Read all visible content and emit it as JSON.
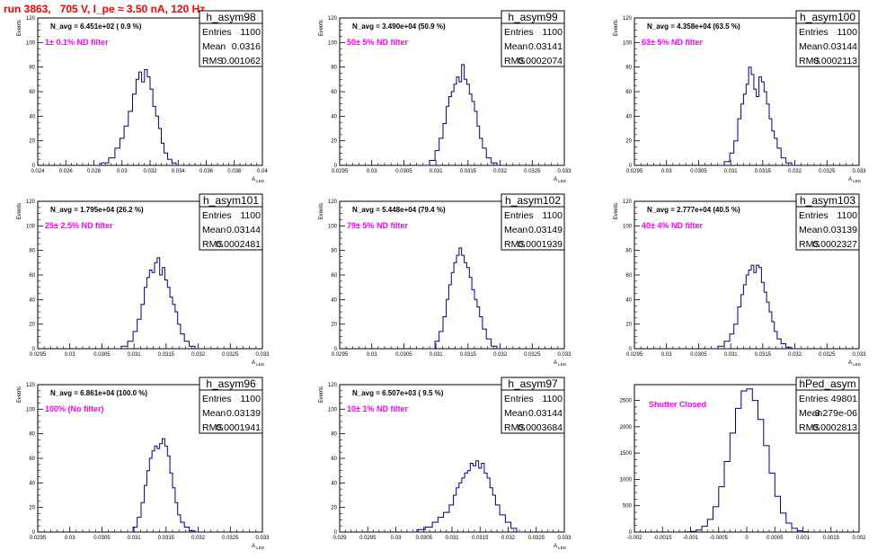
{
  "title": "run 3863,   705 V, I_pe ≈ 3.50 nA, 120 Hz",
  "colors": {
    "title": "#ff0000",
    "histogram": "#000080",
    "annotation": "#ff00ff",
    "text": "#000000"
  },
  "chart_data": [
    {
      "type": "histogram",
      "name": "h_asym98",
      "stats": {
        "Entries": "1100",
        "Mean": "0.0316",
        "RMS": "0.001062"
      },
      "n_avg": "N_avg = 6.451e+02 ( 0.9 %)",
      "filter": "1± 0.1% ND filter",
      "xlabel": "A_LED",
      "ylabel": "Events",
      "xlim": [
        0.024,
        0.04
      ],
      "ylim": [
        0,
        120
      ],
      "xticks": [
        "0.024",
        "0.026",
        "0.028",
        "0.03",
        "0.032",
        "0.034",
        "0.036",
        "0.038",
        "0.04"
      ],
      "yticks": [
        "0",
        "20",
        "40",
        "60",
        "80",
        "100",
        "120"
      ],
      "bins_x": [
        0.0282,
        0.0288,
        0.0293,
        0.0297,
        0.03,
        0.0303,
        0.0306,
        0.0309,
        0.0311,
        0.0313,
        0.0315,
        0.0317,
        0.0319,
        0.0321,
        0.0323,
        0.0325,
        0.0327,
        0.0329,
        0.0331,
        0.0334,
        0.0337,
        0.034
      ],
      "bins_y": [
        0,
        2,
        6,
        14,
        22,
        32,
        44,
        58,
        70,
        76,
        68,
        78,
        72,
        62,
        48,
        40,
        30,
        18,
        10,
        5,
        2,
        0
      ]
    },
    {
      "type": "histogram",
      "name": "h_asym99",
      "stats": {
        "Entries": "1100",
        "Mean": "0.03141",
        "RMS": "0.0002074"
      },
      "n_avg": "N_avg = 3.490e+04 (50.9 %)",
      "filter": "50± 5% ND filter",
      "xlabel": "A_LED",
      "ylabel": "Events",
      "xlim": [
        0.0295,
        0.033
      ],
      "ylim": [
        0,
        120
      ],
      "xticks": [
        "0.0295",
        "0.03",
        "0.0305",
        "0.031",
        "0.0315",
        "0.032",
        "0.0325",
        "0.033"
      ],
      "yticks": [
        "0",
        "20",
        "40",
        "60",
        "80",
        "100",
        "120"
      ],
      "bins_x": [
        0.03085,
        0.03095,
        0.03102,
        0.03108,
        0.03114,
        0.03118,
        0.03122,
        0.03126,
        0.0313,
        0.03134,
        0.03138,
        0.03142,
        0.03146,
        0.0315,
        0.03154,
        0.03158,
        0.03162,
        0.03166,
        0.0317,
        0.03175,
        0.03182,
        0.0319,
        0.032
      ],
      "bins_y": [
        0,
        4,
        12,
        22,
        34,
        48,
        56,
        60,
        66,
        72,
        68,
        82,
        70,
        66,
        58,
        52,
        44,
        32,
        22,
        14,
        6,
        2,
        0
      ]
    },
    {
      "type": "histogram",
      "name": "h_asym100",
      "stats": {
        "Entries": "1100",
        "Mean": "0.03144",
        "RMS": "0.0002113"
      },
      "n_avg": "N_avg = 4.358e+04 (63.5 %)",
      "filter": "63± 5% ND filter",
      "xlabel": "A_LED",
      "ylabel": "Events",
      "xlim": [
        0.0295,
        0.033
      ],
      "ylim": [
        0,
        120
      ],
      "xticks": [
        "0.0295",
        "0.03",
        "0.0305",
        "0.031",
        "0.0315",
        "0.032",
        "0.0325",
        "0.033"
      ],
      "yticks": [
        "0",
        "20",
        "40",
        "60",
        "80",
        "100",
        "120"
      ],
      "bins_x": [
        0.03085,
        0.03095,
        0.03102,
        0.03108,
        0.03114,
        0.03118,
        0.03122,
        0.03126,
        0.0313,
        0.03134,
        0.03138,
        0.03142,
        0.03146,
        0.0315,
        0.03154,
        0.03158,
        0.03162,
        0.03166,
        0.0317,
        0.03175,
        0.03182,
        0.0319,
        0.032
      ],
      "bins_y": [
        0,
        3,
        10,
        20,
        38,
        50,
        58,
        66,
        80,
        74,
        62,
        56,
        72,
        68,
        60,
        50,
        38,
        28,
        22,
        14,
        6,
        2,
        0
      ]
    },
    {
      "type": "histogram",
      "name": "h_asym101",
      "stats": {
        "Entries": "1100",
        "Mean": "0.03144",
        "RMS": "0.0002481"
      },
      "n_avg": "N_avg = 1.795e+04 (26.2 %)",
      "filter": "25± 2.5% ND filter",
      "xlabel": "A_LED",
      "ylabel": "Events",
      "xlim": [
        0.0295,
        0.033
      ],
      "ylim": [
        0,
        120
      ],
      "xticks": [
        "0.0295",
        "0.03",
        "0.0305",
        "0.031",
        "0.0315",
        "0.032",
        "0.0325",
        "0.033"
      ],
      "yticks": [
        "0",
        "20",
        "40",
        "60",
        "80",
        "100",
        "120"
      ],
      "bins_x": [
        0.03075,
        0.03085,
        0.03095,
        0.03102,
        0.03108,
        0.03114,
        0.03118,
        0.03122,
        0.03126,
        0.0313,
        0.03134,
        0.03138,
        0.03142,
        0.03146,
        0.0315,
        0.03154,
        0.03158,
        0.03162,
        0.03166,
        0.0317,
        0.03175,
        0.03182,
        0.0319,
        0.032
      ],
      "bins_y": [
        0,
        2,
        6,
        14,
        24,
        36,
        50,
        58,
        64,
        62,
        70,
        74,
        60,
        66,
        56,
        50,
        42,
        36,
        30,
        20,
        12,
        6,
        2,
        0
      ]
    },
    {
      "type": "histogram",
      "name": "h_asym102",
      "stats": {
        "Entries": "1100",
        "Mean": "0.03149",
        "RMS": "0.0001939"
      },
      "n_avg": "N_avg = 5.448e+04 (79.4 %)",
      "filter": "79± 5% ND filter",
      "xlabel": "A_LED",
      "ylabel": "Events",
      "xlim": [
        0.0295,
        0.033
      ],
      "ylim": [
        0,
        120
      ],
      "xticks": [
        "0.0295",
        "0.03",
        "0.0305",
        "0.031",
        "0.0315",
        "0.032",
        "0.0325",
        "0.033"
      ],
      "yticks": [
        "0",
        "20",
        "40",
        "60",
        "80",
        "100",
        "120"
      ],
      "bins_x": [
        0.03095,
        0.03102,
        0.03108,
        0.03114,
        0.03118,
        0.03122,
        0.03126,
        0.0313,
        0.03134,
        0.03138,
        0.03142,
        0.03146,
        0.0315,
        0.03154,
        0.03158,
        0.03162,
        0.03166,
        0.0317,
        0.03175,
        0.03182,
        0.0319,
        0.032
      ],
      "bins_y": [
        0,
        6,
        14,
        26,
        40,
        52,
        62,
        70,
        76,
        82,
        76,
        70,
        66,
        58,
        48,
        40,
        34,
        26,
        16,
        8,
        2,
        0
      ]
    },
    {
      "type": "histogram",
      "name": "h_asym103",
      "stats": {
        "Entries": "1100",
        "Mean": "0.03139",
        "RMS": "0.0002327"
      },
      "n_avg": "N_avg = 2.777e+04 (40.5 %)",
      "filter": "40± 4% ND filter",
      "xlabel": "A_LED",
      "ylabel": "Events",
      "xlim": [
        0.0295,
        0.033
      ],
      "ylim": [
        0,
        120
      ],
      "xticks": [
        "0.0295",
        "0.03",
        "0.0305",
        "0.031",
        "0.0315",
        "0.032",
        "0.0325",
        "0.033"
      ],
      "yticks": [
        "0",
        "20",
        "40",
        "60",
        "80",
        "100",
        "120"
      ],
      "bins_x": [
        0.03075,
        0.03085,
        0.03095,
        0.03102,
        0.03108,
        0.03114,
        0.03118,
        0.03122,
        0.03126,
        0.0313,
        0.03134,
        0.03138,
        0.03142,
        0.03146,
        0.0315,
        0.03154,
        0.03158,
        0.03162,
        0.03166,
        0.0317,
        0.03175,
        0.03182,
        0.0319,
        0.032
      ],
      "bins_y": [
        0,
        2,
        6,
        12,
        20,
        34,
        44,
        52,
        60,
        64,
        68,
        62,
        68,
        66,
        54,
        46,
        38,
        30,
        22,
        14,
        8,
        4,
        1,
        0
      ]
    },
    {
      "type": "histogram",
      "name": "h_asym96",
      "stats": {
        "Entries": "1100",
        "Mean": "0.03139",
        "RMS": "0.0001941"
      },
      "n_avg": "N_avg = 6.861e+04 (100.0 %)",
      "filter": "100% (No filter)",
      "xlabel": "A_LED",
      "ylabel": "Events",
      "xlim": [
        0.0295,
        0.033
      ],
      "ylim": [
        0,
        120
      ],
      "xticks": [
        "0.0295",
        "0.03",
        "0.0305",
        "0.031",
        "0.0315",
        "0.032",
        "0.0325",
        "0.033"
      ],
      "yticks": [
        "0",
        "20",
        "40",
        "60",
        "80",
        "100",
        "120"
      ],
      "bins_x": [
        0.03095,
        0.03102,
        0.03108,
        0.03114,
        0.03118,
        0.03122,
        0.03126,
        0.0313,
        0.03134,
        0.03138,
        0.03142,
        0.03146,
        0.0315,
        0.03154,
        0.03158,
        0.03162,
        0.03166,
        0.0317,
        0.03175,
        0.03182,
        0.0319,
        0.032
      ],
      "bins_y": [
        0,
        4,
        12,
        24,
        38,
        50,
        60,
        66,
        70,
        68,
        72,
        76,
        70,
        62,
        48,
        36,
        24,
        14,
        8,
        4,
        1,
        0
      ]
    },
    {
      "type": "histogram",
      "name": "h_asym97",
      "stats": {
        "Entries": "1100",
        "Mean": "0.03144",
        "RMS": "0.0003684"
      },
      "n_avg": "N_avg = 6.507e+03 ( 9.5 %)",
      "filter": "10± 1% ND filter",
      "xlabel": "A_LED",
      "ylabel": "Events",
      "xlim": [
        0.029,
        0.033
      ],
      "ylim": [
        0,
        120
      ],
      "xticks": [
        "0.029",
        "0.0295",
        "0.03",
        "0.0305",
        "0.031",
        "0.0315",
        "0.032",
        "0.0325",
        "0.033"
      ],
      "yticks": [
        "0",
        "20",
        "40",
        "60",
        "80",
        "100",
        "120"
      ],
      "bins_x": [
        0.0303,
        0.03045,
        0.0306,
        0.0307,
        0.0308,
        0.0309,
        0.031,
        0.03105,
        0.0311,
        0.03115,
        0.0312,
        0.03125,
        0.0313,
        0.03135,
        0.0314,
        0.03145,
        0.0315,
        0.03155,
        0.0316,
        0.03165,
        0.0317,
        0.03175,
        0.0318,
        0.0319,
        0.032,
        0.0321,
        0.0322
      ],
      "bins_y": [
        0,
        2,
        4,
        8,
        12,
        16,
        22,
        30,
        36,
        40,
        44,
        48,
        50,
        56,
        54,
        58,
        52,
        56,
        48,
        44,
        36,
        30,
        22,
        14,
        8,
        3,
        0
      ]
    },
    {
      "type": "histogram",
      "name": "hPed_asym",
      "stats": {
        "Entries": "49801",
        "Mean": "-3.279e-06",
        "RMS": "0.0002813"
      },
      "n_avg": "",
      "filter": "Shutter Closed",
      "xlabel": "",
      "ylabel": "",
      "xlim": [
        -0.002,
        0.002
      ],
      "ylim": [
        0,
        2800
      ],
      "xticks": [
        "-0.002",
        "-0.0015",
        "-0.001",
        "-0.0005",
        "0",
        "0.0005",
        "0.001",
        "0.0015",
        "0.002"
      ],
      "yticks": [
        "0",
        "500",
        "1000",
        "1500",
        "2000",
        "2500"
      ],
      "bins_x": [
        -0.00105,
        -0.00095,
        -0.00085,
        -0.00075,
        -0.00065,
        -0.00055,
        -0.00045,
        -0.00035,
        -0.00025,
        -0.00015,
        -5e-05,
        5e-05,
        0.00015,
        0.00025,
        0.00035,
        0.00045,
        0.00055,
        0.00065,
        0.00075,
        0.00085,
        0.00095,
        0.00105
      ],
      "bins_y": [
        4,
        14,
        40,
        110,
        240,
        480,
        860,
        1340,
        1880,
        2350,
        2680,
        2720,
        2500,
        2140,
        1640,
        1120,
        680,
        360,
        170,
        70,
        24,
        6
      ]
    }
  ]
}
